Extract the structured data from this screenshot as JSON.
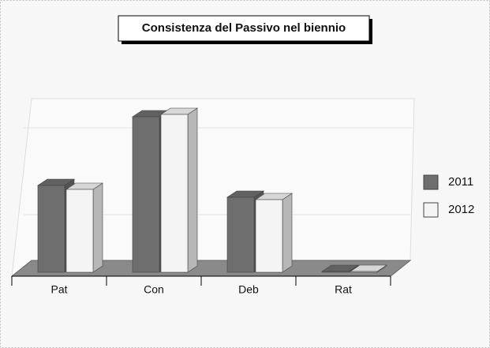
{
  "chart_data": {
    "type": "bar3d",
    "title": "Consistenza del Passivo nel biennio",
    "categories": [
      "Pat",
      "Con",
      "Deb",
      "Rat"
    ],
    "series": [
      {
        "name": "2011",
        "color": "#6e6e6e",
        "values": [
          110,
          197,
          95,
          1
        ]
      },
      {
        "name": "2012",
        "color": "#f4f4f4",
        "values": [
          105,
          200,
          92,
          1
        ]
      }
    ],
    "legend": "right"
  }
}
